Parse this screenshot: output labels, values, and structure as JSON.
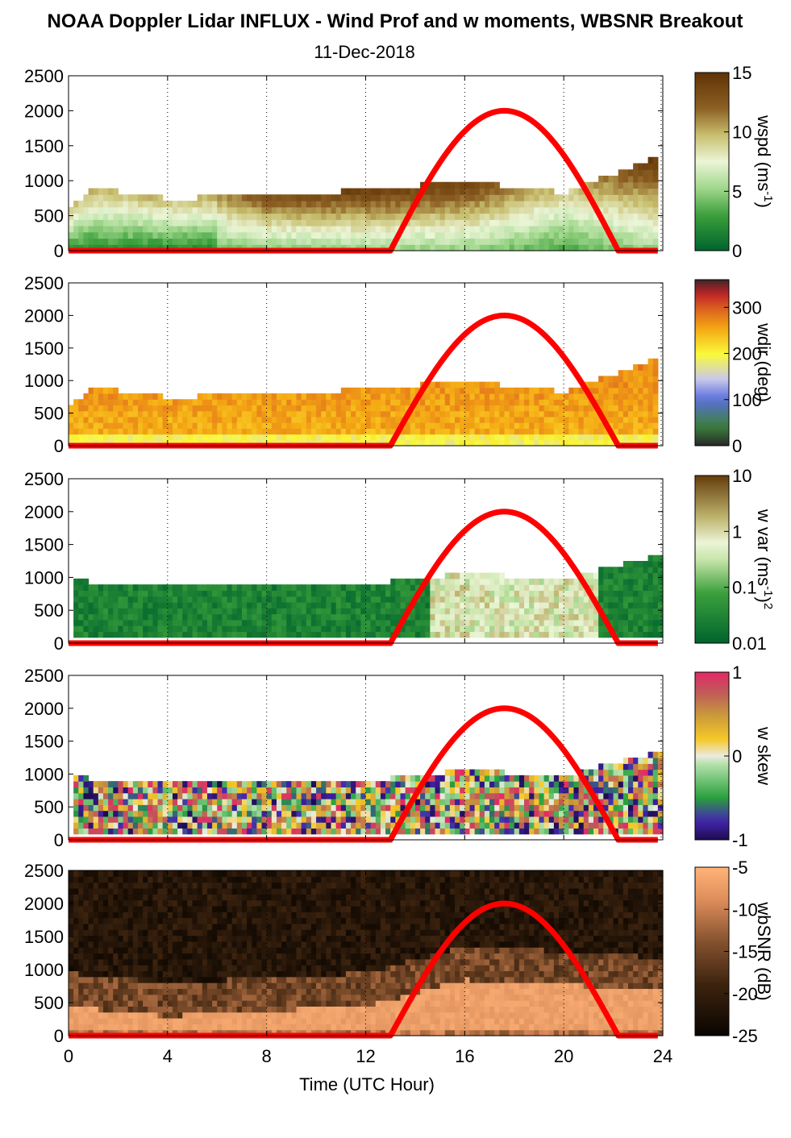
{
  "title": "NOAA Doppler Lidar INFLUX - Wind Prof and w moments, WBSNR Breakout",
  "subtitle": "11-Dec-2018",
  "chart_data": [
    {
      "type": "heatmap",
      "panel": "wspd",
      "xlabel": "",
      "ylabel": "",
      "xlim": [
        0,
        24
      ],
      "ylim": [
        0,
        2500
      ],
      "xticks": [
        "0",
        "4",
        "8",
        "12",
        "16",
        "20",
        "24"
      ],
      "yticks": [
        "0",
        "500",
        "1000",
        "1500",
        "2000",
        "2500"
      ],
      "grid": "vertical dotted",
      "colorbar": {
        "label": "wspd (ms-1)",
        "ticks": [
          "0",
          "5",
          "10",
          "15"
        ],
        "range": [
          0,
          15
        ]
      },
      "overlay_sun_curve": {
        "start_hour": 13,
        "peak_hour": 17.6,
        "end_hour": 22.2,
        "peak_height": 2000
      },
      "layer_top_m": [
        [
          0,
          600
        ],
        [
          1,
          900
        ],
        [
          4,
          750
        ],
        [
          8,
          780
        ],
        [
          12,
          870
        ],
        [
          16,
          990
        ],
        [
          20,
          830
        ],
        [
          23.7,
          1330
        ]
      ],
      "value_profile_by_hour": [
        [
          0,
          3
        ],
        [
          4,
          8
        ],
        [
          8,
          13
        ],
        [
          12,
          14
        ],
        [
          16,
          14
        ],
        [
          20,
          9
        ],
        [
          24,
          15
        ]
      ]
    },
    {
      "type": "heatmap",
      "panel": "wdir",
      "xlim": [
        0,
        24
      ],
      "ylim": [
        0,
        2500
      ],
      "xticks": [
        "0",
        "4",
        "8",
        "12",
        "16",
        "20",
        "24"
      ],
      "yticks": [
        "0",
        "500",
        "1000",
        "1500",
        "2000",
        "2500"
      ],
      "grid": "vertical dotted",
      "colorbar": {
        "label": "wdir (deg)",
        "ticks": [
          "0",
          "100",
          "200",
          "300"
        ],
        "range": [
          0,
          360
        ]
      },
      "overlay_sun_curve": {
        "start_hour": 13,
        "peak_hour": 17.6,
        "end_hour": 22.2,
        "peak_height": 2000
      },
      "layer_top_m": [
        [
          0,
          600
        ],
        [
          1,
          900
        ],
        [
          4,
          750
        ],
        [
          8,
          780
        ],
        [
          12,
          870
        ],
        [
          16,
          990
        ],
        [
          20,
          830
        ],
        [
          23.7,
          1330
        ]
      ],
      "value_profile_by_hour": [
        [
          0,
          250
        ],
        [
          4,
          265
        ],
        [
          8,
          270
        ],
        [
          12,
          260
        ],
        [
          16,
          255
        ],
        [
          20,
          255
        ],
        [
          24,
          240
        ]
      ]
    },
    {
      "type": "heatmap",
      "panel": "w var",
      "xlim": [
        0,
        24
      ],
      "ylim": [
        0,
        2500
      ],
      "xticks": [
        "0",
        "4",
        "8",
        "12",
        "16",
        "20",
        "24"
      ],
      "yticks": [
        "0",
        "500",
        "1000",
        "1500",
        "2000",
        "2500"
      ],
      "grid": "vertical dotted",
      "colorbar": {
        "label": "w var (ms-1)2",
        "ticks": [
          "0.01",
          "0.1",
          "1",
          "10"
        ],
        "scale": "log",
        "range": [
          0.01,
          10
        ]
      },
      "overlay_sun_curve": {
        "start_hour": 13,
        "peak_hour": 17.6,
        "end_hour": 22.2,
        "peak_height": 2000
      },
      "layer_top_m": [
        [
          0.3,
          950
        ],
        [
          4,
          870
        ],
        [
          8,
          870
        ],
        [
          12,
          900
        ],
        [
          16,
          1060
        ],
        [
          20,
          980
        ],
        [
          24,
          1350
        ]
      ]
    },
    {
      "type": "heatmap",
      "panel": "w skew",
      "xlim": [
        0,
        24
      ],
      "ylim": [
        0,
        2500
      ],
      "xticks": [
        "0",
        "4",
        "8",
        "12",
        "16",
        "20",
        "24"
      ],
      "yticks": [
        "0",
        "500",
        "1000",
        "1500",
        "2000",
        "2500"
      ],
      "grid": "vertical dotted",
      "colorbar": {
        "label": "w skew",
        "ticks": [
          "-1",
          "0",
          "1"
        ],
        "range": [
          -1,
          1
        ]
      },
      "overlay_sun_curve": {
        "start_hour": 13,
        "peak_hour": 17.6,
        "end_hour": 22.2,
        "peak_height": 2000
      },
      "layer_top_m": [
        [
          0.3,
          950
        ],
        [
          4,
          870
        ],
        [
          8,
          870
        ],
        [
          12,
          900
        ],
        [
          16,
          1060
        ],
        [
          20,
          980
        ],
        [
          24,
          1350
        ]
      ]
    },
    {
      "type": "heatmap",
      "panel": "wbSNR",
      "xlabel": "Time (UTC Hour)",
      "xlim": [
        0,
        24
      ],
      "ylim": [
        0,
        2500
      ],
      "xticks": [
        "0",
        "4",
        "8",
        "12",
        "16",
        "20",
        "24"
      ],
      "yticks": [
        "0",
        "500",
        "1000",
        "1500",
        "2000",
        "2500"
      ],
      "grid": "vertical dotted",
      "colorbar": {
        "label": "wbSNR (dB)",
        "ticks": [
          "-25",
          "-20",
          "-15",
          "-10",
          "-5"
        ],
        "range": [
          -25,
          -5
        ]
      },
      "overlay_sun_curve": {
        "start_hour": 13,
        "peak_hour": 17.6,
        "end_hour": 22.2,
        "peak_height": 2000
      },
      "bright_layer_top_m": [
        [
          0,
          450
        ],
        [
          4,
          300
        ],
        [
          8,
          380
        ],
        [
          12,
          450
        ],
        [
          16,
          850
        ],
        [
          20,
          780
        ],
        [
          24,
          680
        ]
      ]
    }
  ]
}
